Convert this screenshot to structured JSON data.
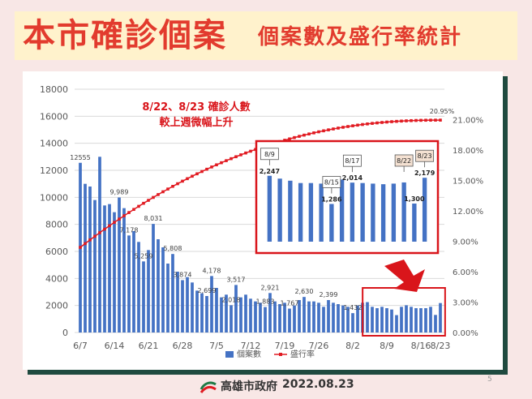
{
  "title": {
    "main": "本市確診個案",
    "sub": "個案數及盛行率統計"
  },
  "annotation": {
    "line1": "8/22、8/23 確診人數",
    "line2": "較上週微幅上升"
  },
  "footer": {
    "org": "高雄市政府",
    "date": "2022.08.23",
    "page": "5"
  },
  "colors": {
    "bar": "#4472c4",
    "line": "#e11b22",
    "title": "#e23b2e",
    "highlight": "#d9151b"
  },
  "chart_data": {
    "type": "bar",
    "left_axis": {
      "ticks": [
        "0",
        "2000",
        "4000",
        "6000",
        "8000",
        "10000",
        "12000",
        "14000",
        "16000",
        "18000"
      ],
      "range": [
        0,
        18000
      ]
    },
    "right_axis": {
      "ticks": [
        "0.00%",
        "3.00%",
        "6.00%",
        "9.00%",
        "12.00%",
        "15.00%",
        "18.00%",
        "21.00%"
      ],
      "range": [
        0,
        24
      ]
    },
    "x_tick_labels": [
      "6/7",
      "6/14",
      "6/21",
      "6/28",
      "7/5",
      "7/12",
      "7/19",
      "7/26",
      "8/2",
      "8/9",
      "8/16",
      "8/23"
    ],
    "legend": [
      "個案數",
      "盛行率"
    ],
    "series_bars": {
      "name": "個案數",
      "values": [
        12555,
        11000,
        10800,
        9800,
        13000,
        9400,
        9500,
        8900,
        9989,
        9200,
        7178,
        7500,
        6700,
        5259,
        6100,
        8031,
        6900,
        6300,
        5100,
        5808,
        4500,
        3874,
        4100,
        3700,
        3100,
        2900,
        2699,
        4178,
        3300,
        2600,
        2800,
        2018,
        3517,
        2600,
        2800,
        2500,
        2300,
        2200,
        1883,
        2921,
        2300,
        2100,
        2200,
        1767,
        2000,
        2400,
        2630,
        2300,
        2300,
        2200,
        1900,
        2399,
        2200,
        2100,
        2000,
        1900,
        1432,
        2000,
        2200,
        2247,
        1900,
        1800,
        1900,
        1800,
        1700,
        1286,
        1900,
        2014,
        1900,
        1800,
        1800,
        1800,
        1900,
        1300,
        2179
      ],
      "labels": [
        {
          "i": 0,
          "text": "12555"
        },
        {
          "i": 8,
          "text": "9,989"
        },
        {
          "i": 10,
          "text": "7,178"
        },
        {
          "i": 13,
          "text": "5,259"
        },
        {
          "i": 15,
          "text": "8,031"
        },
        {
          "i": 19,
          "text": "5,808"
        },
        {
          "i": 21,
          "text": "3,874"
        },
        {
          "i": 26,
          "text": "2,699"
        },
        {
          "i": 27,
          "text": "4,178"
        },
        {
          "i": 31,
          "text": "2,018"
        },
        {
          "i": 32,
          "text": "3,517"
        },
        {
          "i": 38,
          "text": "1,883"
        },
        {
          "i": 39,
          "text": "2,921"
        },
        {
          "i": 43,
          "text": "1,767"
        },
        {
          "i": 46,
          "text": "2,630"
        },
        {
          "i": 51,
          "text": "2,399"
        },
        {
          "i": 56,
          "text": "1,432"
        }
      ]
    },
    "series_line": {
      "name": "盛行率",
      "start": 8.4,
      "end": 20.95,
      "end_label": "20.95%"
    },
    "inset": {
      "values": [
        2247,
        2150,
        2080,
        2000,
        2000,
        1980,
        1286,
        2120,
        2014,
        2000,
        1980,
        1960,
        1980,
        2020,
        1300,
        2179
      ],
      "bar_labels": [
        {
          "i": 0,
          "text": "2,247"
        },
        {
          "i": 6,
          "text": "1,286"
        },
        {
          "i": 8,
          "text": "2,014"
        },
        {
          "i": 14,
          "text": "1,300"
        },
        {
          "i": 15,
          "text": "2,179"
        }
      ],
      "callouts": [
        {
          "i": 0,
          "text": "8/9"
        },
        {
          "i": 6,
          "text": "8/15"
        },
        {
          "i": 8,
          "text": "8/17"
        },
        {
          "i": 13,
          "text": "8/22"
        },
        {
          "i": 15,
          "text": "8/23"
        }
      ]
    }
  }
}
